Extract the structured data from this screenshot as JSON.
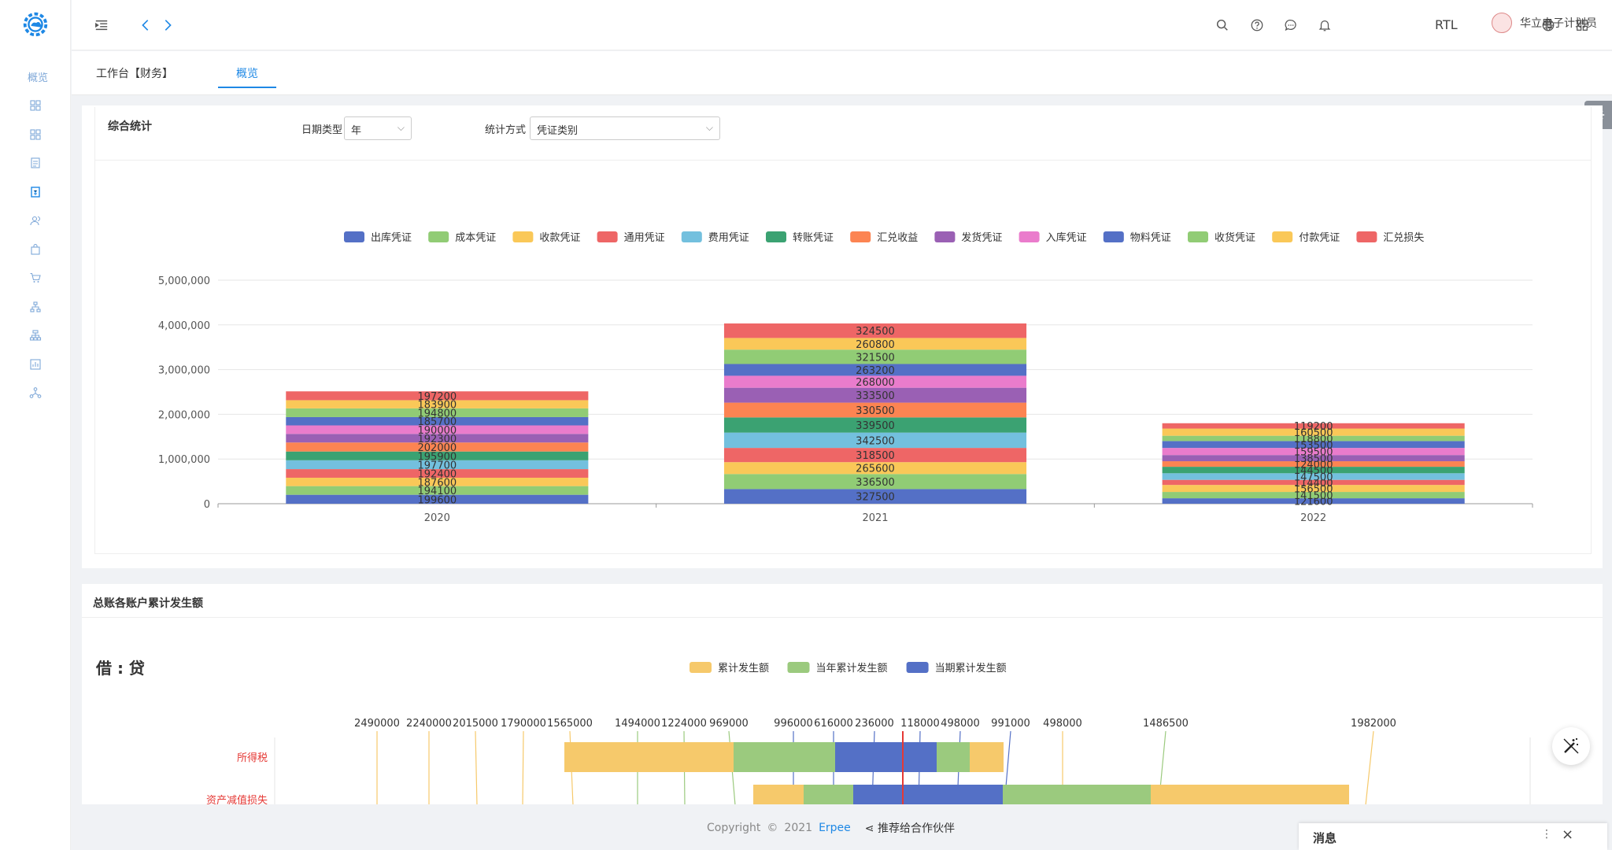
{
  "sidebar": {
    "overview_label": "概览",
    "items": [
      "grid-icon",
      "grid-icon",
      "document-icon",
      "voucher-icon",
      "users-icon",
      "bag-icon",
      "cart-icon",
      "org-icon",
      "hierarchy-icon",
      "report-icon",
      "network-icon"
    ]
  },
  "header": {
    "rtl_label": "RTL",
    "user_name": "华立电子计划员"
  },
  "tabs": [
    {
      "label": "工作台【财务】",
      "active": false
    },
    {
      "label": "概览",
      "active": true
    }
  ],
  "panel1": {
    "title": "综合统计",
    "date_type_label": "日期类型 :",
    "date_type_value": "年",
    "stat_mode_label": "统计方式 :",
    "stat_mode_value": "凭证类别"
  },
  "chart_data": [
    {
      "type": "bar",
      "stacked": true,
      "categories": [
        "2020",
        "2021",
        "2022"
      ],
      "ylim": [
        0,
        5000000
      ],
      "yticks": [
        "0",
        "1,000,000",
        "2,000,000",
        "3,000,000",
        "4,000,000",
        "5,000,000"
      ],
      "legend_position": "top-center",
      "series": [
        {
          "name": "出库凭证",
          "color": "#5470c6",
          "values": [
            199600,
            327500,
            121600
          ]
        },
        {
          "name": "成本凭证",
          "color": "#91cc75",
          "values": [
            194100,
            336500,
            141500
          ]
        },
        {
          "name": "收款凭证",
          "color": "#fac858",
          "values": [
            187600,
            265600,
            156500
          ]
        },
        {
          "name": "通用凭证",
          "color": "#ee6666",
          "values": [
            192400,
            318500,
            114400
          ]
        },
        {
          "name": "费用凭证",
          "color": "#73c0de",
          "values": [
            197700,
            342500,
            147500
          ]
        },
        {
          "name": "转账凭证",
          "color": "#3ba272",
          "values": [
            195900,
            339500,
            144500
          ]
        },
        {
          "name": "汇兑收益",
          "color": "#fc8452",
          "values": [
            202000,
            330500,
            124000
          ]
        },
        {
          "name": "发货凭证",
          "color": "#9a60b4",
          "values": [
            192300,
            333500,
            138500
          ]
        },
        {
          "name": "入库凭证",
          "color": "#ea7ccc",
          "values": [
            190000,
            268000,
            159500
          ]
        },
        {
          "name": "物料凭证",
          "color": "#5470c6",
          "values": [
            185700,
            263200,
            153500
          ]
        },
        {
          "name": "收货凭证",
          "color": "#91cc75",
          "values": [
            194800,
            321500,
            118800
          ]
        },
        {
          "name": "付款凭证",
          "color": "#fac858",
          "values": [
            183900,
            260800,
            160500
          ]
        },
        {
          "name": "汇兑损失",
          "color": "#ee6666",
          "values": [
            197200,
            324500,
            119200
          ]
        }
      ]
    }
  ],
  "panel2": {
    "title": "总账各账户累计发生额",
    "subtitle": "借 : 贷",
    "legend": [
      {
        "name": "累计发生额",
        "color": "#f6c96b"
      },
      {
        "name": "当年累计发生额",
        "color": "#9bca7e"
      },
      {
        "name": "当期累计发生额",
        "color": "#5470c6"
      }
    ],
    "top_labels": [
      "2490000",
      "2240000",
      "2015000",
      "1790000",
      "1565000",
      "1494000",
      "1224000",
      "969000",
      "996000",
      "616000",
      "236000",
      "118000",
      "498000",
      "991000",
      "498000",
      "1486500",
      "1982000"
    ],
    "rows": [
      "所得税",
      "资产减值损失"
    ]
  },
  "footer": {
    "copyright": "Copyright",
    "year": "2021",
    "brand": "Erpee",
    "partner": "推荐给合作伙伴"
  },
  "message": {
    "title": "消息"
  }
}
